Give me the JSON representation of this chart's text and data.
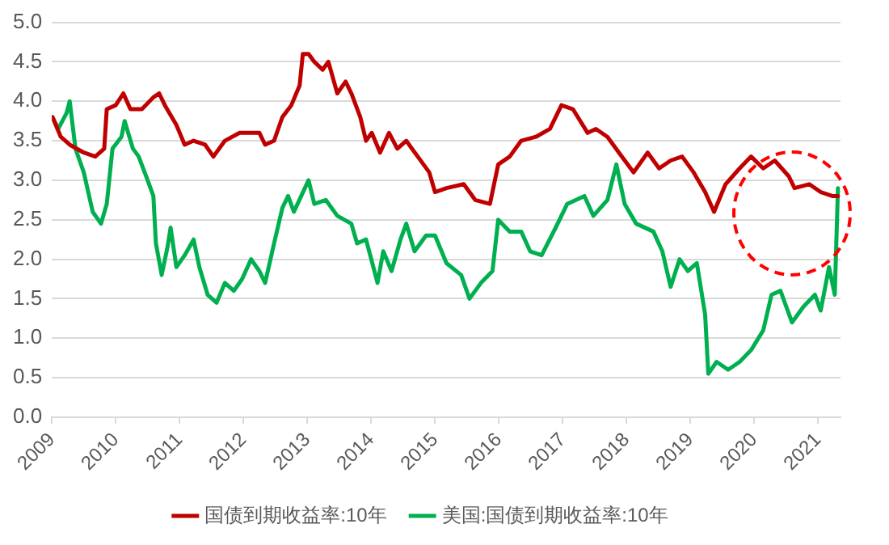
{
  "chart_data": {
    "type": "line",
    "xlim": [
      2009,
      2021.35
    ],
    "xticks": [
      2009,
      2010,
      2011,
      2012,
      2013,
      2014,
      2015,
      2016,
      2017,
      2018,
      2019,
      2020,
      2021
    ],
    "ylim": [
      0,
      5
    ],
    "yticks": [
      {
        "value": 0,
        "label": "0.0"
      },
      {
        "value": 0.5,
        "label": "0.5"
      },
      {
        "value": 1,
        "label": "1.0"
      },
      {
        "value": 1.5,
        "label": "1.5"
      },
      {
        "value": 2,
        "label": "2.0"
      },
      {
        "value": 2.5,
        "label": "2.5"
      },
      {
        "value": 3,
        "label": "3.0"
      },
      {
        "value": 3.5,
        "label": "3.5"
      },
      {
        "value": 4,
        "label": "4.0"
      },
      {
        "value": 4.5,
        "label": "4.5"
      },
      {
        "value": 5,
        "label": "5.0"
      }
    ],
    "grid": "y",
    "legend": "bottom",
    "marker": "none",
    "line_style": "solid",
    "series": [
      {
        "name": "国债到期收益率:10年",
        "color": "#c00000",
        "x": [
          2009.01,
          2009.14,
          2009.28,
          2009.5,
          2009.68,
          2009.82,
          2009.86,
          2010.0,
          2010.12,
          2010.23,
          2010.41,
          2010.59,
          2010.68,
          2010.77,
          2010.95,
          2011.08,
          2011.22,
          2011.4,
          2011.53,
          2011.71,
          2011.94,
          2012.25,
          2012.34,
          2012.48,
          2012.61,
          2012.75,
          2012.88,
          2012.93,
          2013.02,
          2013.11,
          2013.24,
          2013.33,
          2013.47,
          2013.6,
          2013.69,
          2013.83,
          2013.92,
          2014.01,
          2014.14,
          2014.28,
          2014.41,
          2014.55,
          2014.73,
          2014.91,
          2015.0,
          2015.18,
          2015.45,
          2015.63,
          2015.86,
          2015.99,
          2016.17,
          2016.35,
          2016.58,
          2016.8,
          2016.98,
          2017.16,
          2017.39,
          2017.52,
          2017.7,
          2017.88,
          2018.11,
          2018.33,
          2018.51,
          2018.69,
          2018.87,
          2019.05,
          2019.23,
          2019.37,
          2019.55,
          2019.77,
          2019.95,
          2020.14,
          2020.32,
          2020.54,
          2020.63,
          2020.86,
          2021.04,
          2021.22,
          2021.31
        ],
        "values": [
          3.8,
          3.55,
          3.45,
          3.35,
          3.3,
          3.4,
          3.9,
          3.95,
          4.1,
          3.9,
          3.9,
          4.05,
          4.1,
          3.95,
          3.7,
          3.45,
          3.5,
          3.45,
          3.3,
          3.5,
          3.6,
          3.6,
          3.45,
          3.5,
          3.8,
          3.95,
          4.2,
          4.6,
          4.6,
          4.5,
          4.4,
          4.5,
          4.1,
          4.25,
          4.1,
          3.8,
          3.5,
          3.6,
          3.35,
          3.6,
          3.4,
          3.5,
          3.3,
          3.1,
          2.85,
          2.9,
          2.95,
          2.75,
          2.7,
          3.2,
          3.3,
          3.5,
          3.55,
          3.65,
          3.95,
          3.9,
          3.6,
          3.65,
          3.55,
          3.35,
          3.1,
          3.35,
          3.15,
          3.25,
          3.3,
          3.1,
          2.85,
          2.6,
          2.95,
          3.15,
          3.3,
          3.15,
          3.25,
          3.05,
          2.9,
          2.95,
          2.85,
          2.8,
          2.8
        ]
      },
      {
        "name": "美国:国债到期收益率:10年",
        "color": "#00b050",
        "x": [
          2009.01,
          2009.1,
          2009.23,
          2009.28,
          2009.37,
          2009.5,
          2009.64,
          2009.77,
          2009.86,
          2009.95,
          2010.09,
          2010.14,
          2010.27,
          2010.36,
          2010.5,
          2010.59,
          2010.63,
          2010.72,
          2010.81,
          2010.86,
          2010.95,
          2011.08,
          2011.22,
          2011.31,
          2011.44,
          2011.58,
          2011.71,
          2011.85,
          2011.98,
          2012.12,
          2012.25,
          2012.34,
          2012.48,
          2012.61,
          2012.7,
          2012.79,
          2013.02,
          2013.11,
          2013.29,
          2013.47,
          2013.69,
          2013.78,
          2013.92,
          2014.1,
          2014.19,
          2014.32,
          2014.46,
          2014.55,
          2014.68,
          2014.86,
          2015.0,
          2015.18,
          2015.41,
          2015.54,
          2015.72,
          2015.9,
          2015.99,
          2016.17,
          2016.35,
          2016.49,
          2016.67,
          2016.89,
          2017.07,
          2017.34,
          2017.48,
          2017.7,
          2017.84,
          2017.97,
          2018.15,
          2018.42,
          2018.56,
          2018.69,
          2018.83,
          2018.96,
          2019.1,
          2019.23,
          2019.28,
          2019.41,
          2019.59,
          2019.77,
          2019.95,
          2020.14,
          2020.27,
          2020.41,
          2020.59,
          2020.77,
          2020.95,
          2021.04,
          2021.17,
          2021.26,
          2021.31
        ],
        "values": [
          3.8,
          3.65,
          3.85,
          4.0,
          3.4,
          3.1,
          2.6,
          2.45,
          2.7,
          3.4,
          3.55,
          3.75,
          3.4,
          3.3,
          3.0,
          2.8,
          2.2,
          1.8,
          2.15,
          2.4,
          1.9,
          2.05,
          2.25,
          1.9,
          1.55,
          1.45,
          1.7,
          1.6,
          1.75,
          2.0,
          1.85,
          1.7,
          2.2,
          2.65,
          2.8,
          2.6,
          3.0,
          2.7,
          2.75,
          2.55,
          2.45,
          2.2,
          2.25,
          1.7,
          2.1,
          1.85,
          2.25,
          2.45,
          2.1,
          2.3,
          2.3,
          1.95,
          1.8,
          1.5,
          1.7,
          1.85,
          2.5,
          2.35,
          2.35,
          2.1,
          2.05,
          2.4,
          2.7,
          2.8,
          2.55,
          2.75,
          3.2,
          2.7,
          2.45,
          2.35,
          2.1,
          1.65,
          2.0,
          1.85,
          1.95,
          1.3,
          0.55,
          0.7,
          0.6,
          0.7,
          0.85,
          1.1,
          1.55,
          1.6,
          1.2,
          1.4,
          1.55,
          1.35,
          1.9,
          1.55,
          2.9
        ]
      }
    ]
  }
}
